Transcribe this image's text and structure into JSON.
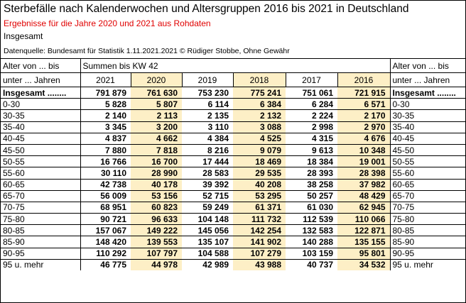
{
  "header": {
    "title": "Sterbefälle nach Kalenderwochen und Altersgruppen 2016 bis 2021 in Deutschland",
    "subtitle": "Ergebnisse für die Jahre 2020 und 2021 aus Rohdaten",
    "note": "Insgesamt",
    "source": "Datenquelle: Bundesamt für Statistik 1.11.2021.2021 © Rüdiger Stobbe, Ohne Gewähr"
  },
  "table": {
    "corner_top": "Alter von ... bis",
    "span_title": "Summen bis KW 42",
    "corner_bottom": "unter ... Jahren",
    "years": [
      "2021",
      "2020",
      "2019",
      "2018",
      "2017",
      "2016"
    ],
    "shaded": [
      false,
      true,
      false,
      true,
      false,
      true
    ],
    "rows": [
      {
        "label": "Insgesamt ........",
        "values": [
          "791 879",
          "761 630",
          "753 230",
          "775 241",
          "751 061",
          "721 915"
        ]
      },
      {
        "label": "0-30",
        "values": [
          "5 828",
          "5 807",
          "6 114",
          "6 384",
          "6 284",
          "6 571"
        ]
      },
      {
        "label": "30-35",
        "values": [
          "2 140",
          "2 113",
          "2 135",
          "2 132",
          "2 224",
          "2 170"
        ]
      },
      {
        "label": "35-40",
        "values": [
          "3 345",
          "3 200",
          "3 110",
          "3 088",
          "2 998",
          "2 970"
        ]
      },
      {
        "label": "40-45",
        "values": [
          "4 837",
          "4 662",
          "4 384",
          "4 525",
          "4 315",
          "4 676"
        ]
      },
      {
        "label": "45-50",
        "values": [
          "7 880",
          "7 818",
          "8 216",
          "9 079",
          "9 613",
          "10 348"
        ]
      },
      {
        "label": "50-55",
        "values": [
          "16 766",
          "16 700",
          "17 444",
          "18 469",
          "18 384",
          "19 001"
        ]
      },
      {
        "label": "55-60",
        "values": [
          "30 110",
          "28 990",
          "28 583",
          "29 535",
          "28 393",
          "28 398"
        ]
      },
      {
        "label": "60-65",
        "values": [
          "42 738",
          "40 178",
          "39 392",
          "40 208",
          "38 258",
          "37 982"
        ]
      },
      {
        "label": "65-70",
        "values": [
          "56 009",
          "53 156",
          "52 715",
          "53 295",
          "50 257",
          "48 429"
        ]
      },
      {
        "label": "70-75",
        "values": [
          "68 951",
          "60 823",
          "59 249",
          "61 371",
          "61 030",
          "62 945"
        ]
      },
      {
        "label": "75-80",
        "values": [
          "90 721",
          "96 633",
          "104 148",
          "111 732",
          "112 539",
          "110 066"
        ]
      },
      {
        "label": "80-85",
        "values": [
          "157 067",
          "149 222",
          "145 056",
          "142 254",
          "132 583",
          "122 871"
        ]
      },
      {
        "label": "85-90",
        "values": [
          "148 420",
          "139 553",
          "135 107",
          "141 902",
          "140 288",
          "135 155"
        ]
      },
      {
        "label": "90-95",
        "values": [
          "110 292",
          "107 797",
          "104 588",
          "107 279",
          "103 159",
          "95 801"
        ]
      },
      {
        "label": "95 u. mehr",
        "values": [
          "46 775",
          "44 978",
          "42 989",
          "43 988",
          "40 737",
          "34 532"
        ]
      }
    ]
  }
}
